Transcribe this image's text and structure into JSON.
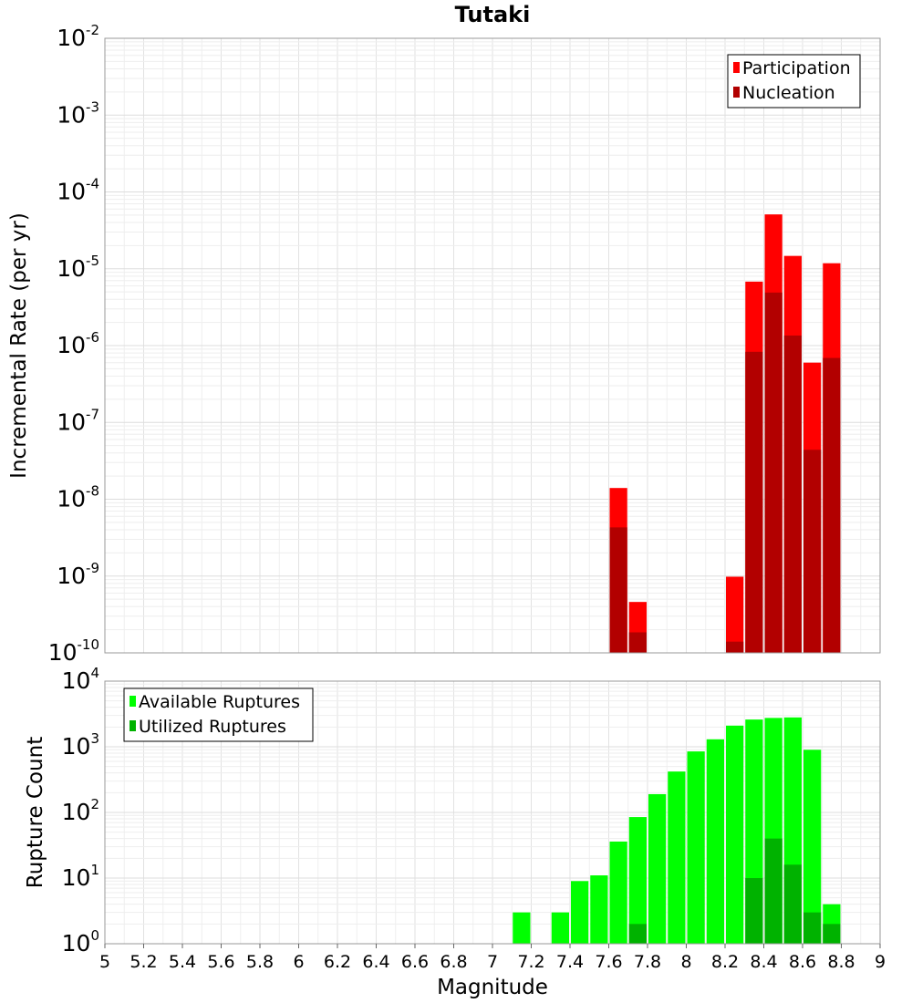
{
  "chart_data": [
    {
      "type": "bar",
      "title": "Tutaki",
      "ylabel": "Incremental Rate (per yr)",
      "xlabel": "",
      "yscale": "log",
      "ylim_exp": [
        -10,
        -2
      ],
      "xlim": [
        5,
        9
      ],
      "bar_width": 0.1,
      "legend_position": "top-right",
      "grid": true,
      "colors": {
        "Participation": "#ff0000",
        "Nucleation": "#b20000"
      },
      "series": [
        {
          "name": "Participation",
          "x": [
            7.65,
            7.75,
            8.25,
            8.35,
            8.45,
            8.55,
            8.65,
            8.75
          ],
          "values": [
            1.4e-08,
            4.6e-10,
            9.8e-10,
            6.8e-06,
            5.1e-05,
            1.47e-05,
            6e-07,
            1.18e-05
          ]
        },
        {
          "name": "Nucleation",
          "x": [
            7.65,
            7.75,
            8.25,
            8.35,
            8.45,
            8.55,
            8.65,
            8.75
          ],
          "values": [
            4.3e-09,
            1.85e-10,
            1.4e-10,
            8.3e-07,
            4.9e-06,
            1.35e-06,
            4.4e-08,
            6.9e-07
          ]
        }
      ]
    },
    {
      "type": "bar",
      "title": "",
      "ylabel": "Rupture Count",
      "xlabel": "Magnitude",
      "yscale": "log",
      "ylim_exp": [
        0,
        4
      ],
      "xlim": [
        5,
        9
      ],
      "x_ticks": [
        "5",
        "5.2",
        "5.4",
        "5.6",
        "5.8",
        "6",
        "6.2",
        "6.4",
        "6.6",
        "6.8",
        "7",
        "7.2",
        "7.4",
        "7.6",
        "7.8",
        "8",
        "8.2",
        "8.4",
        "8.6",
        "8.8",
        "9"
      ],
      "bar_width": 0.1,
      "legend_position": "top-left",
      "grid": true,
      "colors": {
        "Available Ruptures": "#00ff00",
        "Utilized Ruptures": "#00b200"
      },
      "series": [
        {
          "name": "Available Ruptures",
          "x": [
            7.15,
            7.35,
            7.45,
            7.55,
            7.65,
            7.75,
            7.85,
            7.95,
            8.05,
            8.15,
            8.25,
            8.35,
            8.45,
            8.55,
            8.65,
            8.75
          ],
          "values": [
            3,
            3,
            9,
            11,
            36,
            85,
            190,
            420,
            850,
            1300,
            2100,
            2600,
            2750,
            2800,
            900,
            4
          ]
        },
        {
          "name": "Utilized Ruptures",
          "x": [
            7.65,
            7.75,
            8.25,
            8.35,
            8.45,
            8.55,
            8.65,
            8.75
          ],
          "values": [
            1,
            2,
            1,
            10,
            40,
            16,
            3,
            2
          ]
        }
      ]
    }
  ]
}
